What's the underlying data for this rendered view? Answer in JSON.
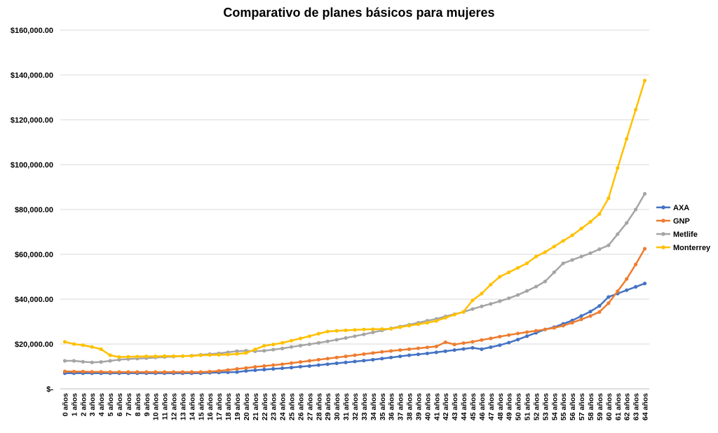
{
  "chart_data": {
    "type": "line",
    "title": "Comparativo de planes básicos para mujeres",
    "xlabel": "",
    "ylabel": "",
    "ylim": [
      0,
      160000
    ],
    "yticks": [
      {
        "value": 0,
        "label": "$-"
      },
      {
        "value": 20000,
        "label": "$20,000.00"
      },
      {
        "value": 40000,
        "label": "$40,000.00"
      },
      {
        "value": 60000,
        "label": "$60,000.00"
      },
      {
        "value": 80000,
        "label": "$80,000.00"
      },
      {
        "value": 100000,
        "label": "$100,000.00"
      },
      {
        "value": 120000,
        "label": "$120,000.00"
      },
      {
        "value": 140000,
        "label": "$140,000.00"
      },
      {
        "value": 160000,
        "label": "$160,000.00"
      }
    ],
    "grid": true,
    "legend": "right",
    "categories": [
      "0 años",
      "1 años",
      "2 años",
      "3 años",
      "4 años",
      "5 años",
      "6 años",
      "7 años",
      "8 años",
      "9 años",
      "10 años",
      "11 años",
      "12 años",
      "13 años",
      "14 años",
      "15 años",
      "16 años",
      "17 años",
      "18 años",
      "19 años",
      "20 años",
      "21 años",
      "22 años",
      "23 años",
      "24 años",
      "25 años",
      "26 años",
      "27 años",
      "28 años",
      "29 años",
      "30 años",
      "31 años",
      "32 años",
      "33 años",
      "34 años",
      "35 años",
      "36 años",
      "37 años",
      "38 años",
      "39 años",
      "40 años",
      "41 años",
      "42 años",
      "43 años",
      "44 años",
      "45 años",
      "46 años",
      "47 años",
      "48 años",
      "49 años",
      "50 años",
      "51 años",
      "52 años",
      "53 años",
      "54 años",
      "55 años",
      "56 años",
      "57 años",
      "58 años",
      "59 años",
      "60 años",
      "61 años",
      "62 años",
      "63 años",
      "64 años"
    ],
    "series": [
      {
        "name": "AXA",
        "color": "#4472C4",
        "values": [
          7000,
          7000,
          7000,
          7000,
          7000,
          7000,
          7000,
          7000,
          7000,
          7000,
          7000,
          7000,
          7000,
          7000,
          7000,
          7000,
          7200,
          7300,
          7400,
          7500,
          8000,
          8300,
          8600,
          8900,
          9200,
          9500,
          9900,
          10200,
          10600,
          11000,
          11400,
          11800,
          12200,
          12600,
          13000,
          13500,
          14000,
          14500,
          15000,
          15400,
          15800,
          16300,
          16800,
          17300,
          17800,
          18300,
          17700,
          18600,
          19500,
          20600,
          22000,
          23500,
          25000,
          26500,
          27500,
          29000,
          30500,
          32500,
          34500,
          37000,
          41000,
          42500,
          44000,
          45500,
          47000
        ]
      },
      {
        "name": "GNP",
        "color": "#ED7D31",
        "values": [
          7800,
          7700,
          7700,
          7600,
          7600,
          7500,
          7500,
          7500,
          7500,
          7500,
          7500,
          7500,
          7500,
          7500,
          7500,
          7500,
          7700,
          8000,
          8400,
          8900,
          9300,
          9800,
          10200,
          10600,
          11000,
          11500,
          12000,
          12500,
          13000,
          13500,
          14000,
          14500,
          15000,
          15500,
          16000,
          16500,
          16900,
          17300,
          17700,
          18100,
          18500,
          18900,
          20800,
          19800,
          20400,
          21000,
          21800,
          22500,
          23300,
          24000,
          24700,
          25300,
          25900,
          26500,
          27200,
          28200,
          29500,
          31000,
          32500,
          34300,
          38200,
          43500,
          49000,
          55500,
          62500
        ]
      },
      {
        "name": "Metlife",
        "color": "#A5A5A5",
        "values": [
          12500,
          12500,
          12100,
          11800,
          12000,
          12500,
          13000,
          13300,
          13500,
          13700,
          14000,
          14200,
          14400,
          14600,
          14800,
          15200,
          15500,
          15800,
          16300,
          16800,
          17000,
          16800,
          17000,
          17500,
          18000,
          18700,
          19300,
          19900,
          20500,
          21200,
          21900,
          22700,
          23500,
          24300,
          25200,
          26100,
          27000,
          27800,
          28600,
          29500,
          30400,
          31200,
          32300,
          33300,
          34300,
          35600,
          36800,
          37900,
          39100,
          40400,
          41900,
          43700,
          45600,
          47900,
          52000,
          56000,
          57500,
          59000,
          60500,
          62300,
          64000,
          69000,
          74000,
          80000,
          87000
        ]
      },
      {
        "name": "Monterrey",
        "color": "#FFC000",
        "values": [
          21000,
          20000,
          19500,
          18700,
          17700,
          15000,
          14200,
          14300,
          14400,
          14500,
          14500,
          14600,
          14600,
          14600,
          14700,
          15000,
          15100,
          15200,
          15300,
          15600,
          16000,
          17600,
          19200,
          19800,
          20500,
          21500,
          22500,
          23500,
          24600,
          25600,
          25900,
          26100,
          26300,
          26500,
          26600,
          26700,
          26800,
          27500,
          28200,
          28800,
          29500,
          30300,
          31700,
          33100,
          34400,
          39500,
          42500,
          46500,
          50000,
          52000,
          54000,
          56000,
          59000,
          61000,
          63500,
          66000,
          68500,
          71500,
          74500,
          78000,
          85000,
          98500,
          111500,
          124500,
          137500
        ]
      }
    ]
  }
}
